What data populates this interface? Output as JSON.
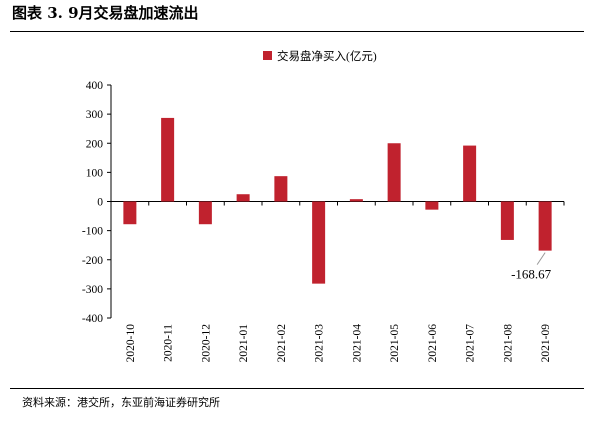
{
  "figure_title": "图表 3.  9月交易盘加速流出",
  "source_note": "资料来源：港交所，东亚前海证券研究所",
  "colors": {
    "bar": "#c0222e",
    "axis": "#000000"
  },
  "chart_data": {
    "type": "bar",
    "categories": [
      "2020-10",
      "2020-11",
      "2020-12",
      "2021-01",
      "2021-02",
      "2021-03",
      "2021-04",
      "2021-05",
      "2021-06",
      "2021-07",
      "2021-08",
      "2021-09"
    ],
    "series": [
      {
        "name": "交易盘净买入(亿元)",
        "values": [
          -78,
          287,
          -78,
          25,
          87,
          -282,
          8,
          200,
          -28,
          192,
          -132,
          -168.67
        ]
      }
    ],
    "ylim": [
      -400,
      400
    ],
    "yticks": [
      -400,
      -300,
      -200,
      -100,
      0,
      100,
      200,
      300,
      400
    ],
    "yticklabels": [
      "-400",
      "-300",
      "-200",
      "-100",
      "0",
      "100",
      "200",
      "300",
      "400"
    ],
    "xlabel": "",
    "ylabel": "",
    "legend_position": "top-center",
    "annotations": [
      {
        "category": "2021-09",
        "text": "-168.67"
      }
    ]
  }
}
